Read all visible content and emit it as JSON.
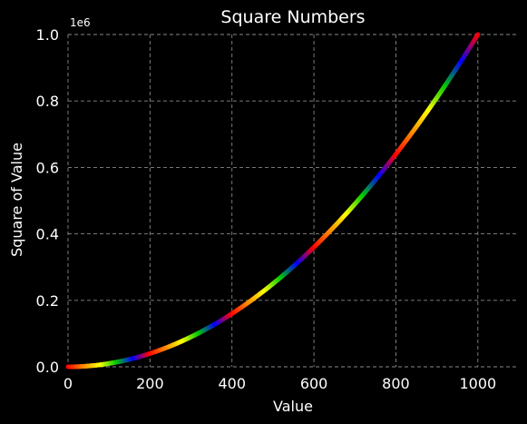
{
  "chart_data": {
    "type": "line",
    "title": "Square Numbers",
    "xlabel": "Value",
    "ylabel": "Square of Value",
    "y_offset_label": "1e6",
    "xlim": [
      0,
      1100
    ],
    "ylim": [
      0,
      1000000
    ],
    "x_ticks": [
      0,
      200,
      400,
      600,
      800,
      1000
    ],
    "x_tick_labels": [
      "0",
      "200",
      "400",
      "600",
      "800",
      "1000"
    ],
    "y_ticks": [
      0,
      200000,
      400000,
      600000,
      800000,
      1000000
    ],
    "y_tick_labels": [
      "0.0",
      "0.2",
      "0.4",
      "0.6",
      "0.8",
      "1.0"
    ],
    "grid": true,
    "series": [
      {
        "x": [
          0,
          50,
          100,
          150,
          200,
          250,
          300,
          350,
          400,
          450,
          500,
          550,
          600,
          650,
          700,
          750,
          800,
          850,
          900,
          950,
          1000
        ],
        "y": [
          0,
          2500,
          10000,
          22500,
          40000,
          62500,
          90000,
          122500,
          160000,
          202500,
          250000,
          302500,
          360000,
          422500,
          490000,
          562500,
          640000,
          722500,
          810000,
          902500,
          1000000
        ]
      }
    ],
    "colormap": [
      "#ff0000",
      "#ff8800",
      "#ffff00",
      "#00cc00",
      "#0000ff",
      "#ff0000"
    ]
  },
  "colors": {
    "background": "#000000",
    "grid": "#888888",
    "text": "#ffffff"
  }
}
